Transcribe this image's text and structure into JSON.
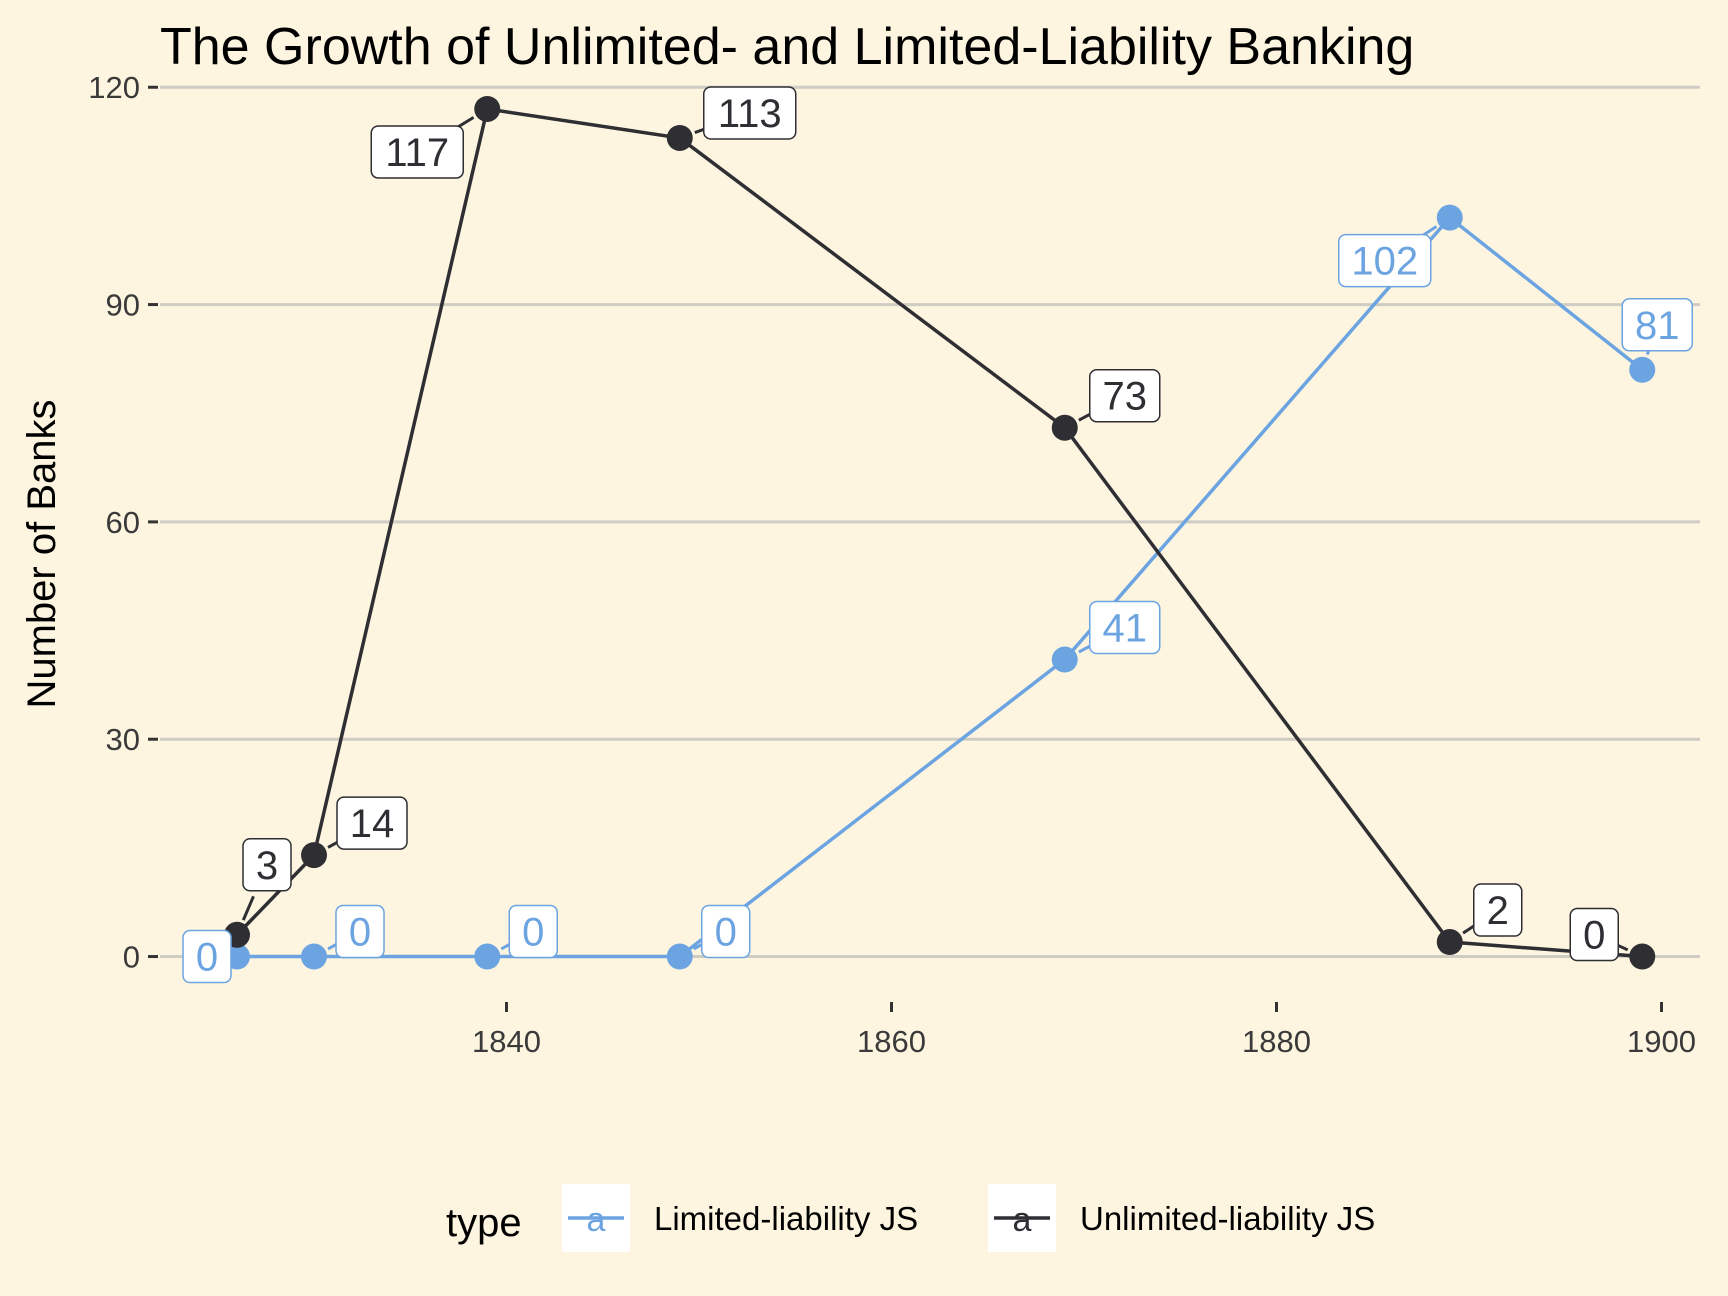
{
  "colors": {
    "background": "#FDF5E0",
    "gridline": "#CFCCC4",
    "label_box": "#FFFFFF"
  },
  "chart_data": {
    "type": "line",
    "title": "The Growth of Unlimited- and Limited-Liability Banking",
    "xlabel": "",
    "ylabel": "Number of Banks",
    "xlim": [
      1822,
      1902
    ],
    "ylim": [
      -6,
      121
    ],
    "x_ticks": [
      1840,
      1860,
      1880,
      1900
    ],
    "y_ticks": [
      0,
      30,
      60,
      90,
      120
    ],
    "grid": "horizontal major",
    "legend": {
      "title": "type",
      "position": "bottom",
      "key_glyph": "a"
    },
    "series": [
      {
        "name": "Limited-liability JS",
        "color": "#6CA4E2",
        "x": [
          1826,
          1830,
          1839,
          1849,
          1869,
          1889,
          1899
        ],
        "values": [
          0,
          0,
          0,
          0,
          41,
          102,
          81
        ]
      },
      {
        "name": "Unlimited-liability JS",
        "color": "#2E2E33",
        "x": [
          1826,
          1830,
          1839,
          1849,
          1869,
          1889,
          1899
        ],
        "values": [
          3,
          14,
          117,
          113,
          73,
          2,
          0
        ]
      }
    ]
  }
}
